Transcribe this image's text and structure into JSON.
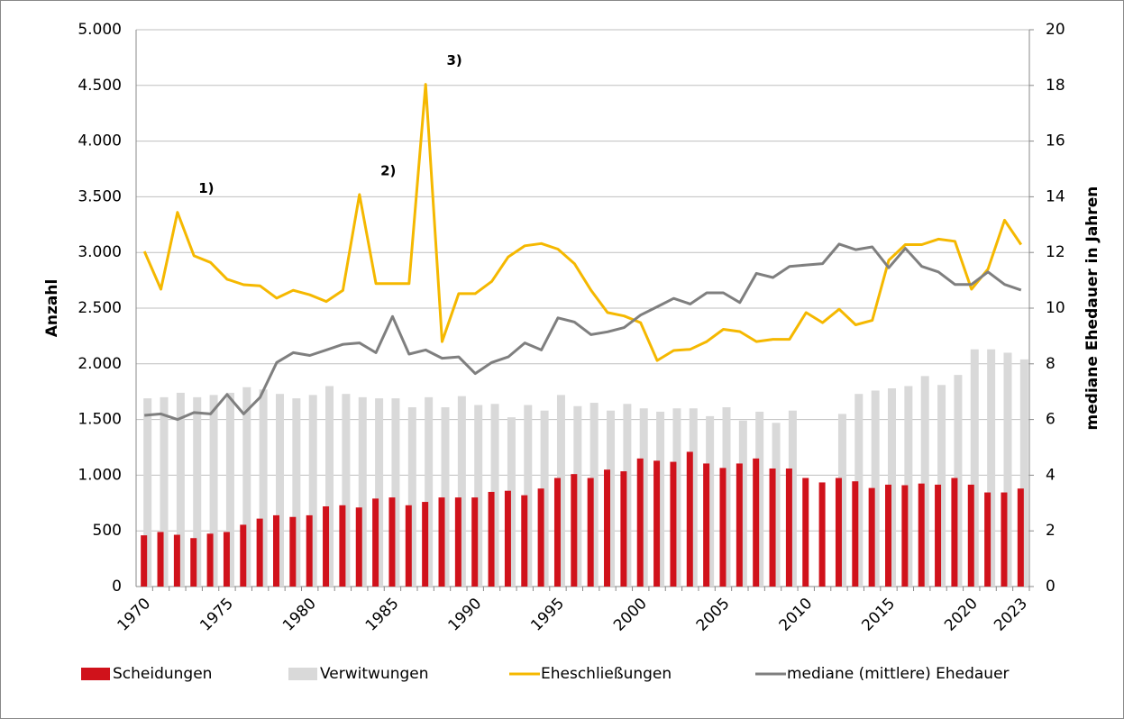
{
  "chart_data": {
    "type": "bar",
    "categories": [
      "1970",
      null,
      null,
      null,
      null,
      "1975",
      null,
      null,
      null,
      null,
      "1980",
      null,
      null,
      null,
      null,
      "1985",
      null,
      null,
      null,
      null,
      "1990",
      null,
      null,
      null,
      null,
      "1995",
      null,
      null,
      null,
      null,
      "2000",
      null,
      null,
      null,
      null,
      "2005",
      null,
      null,
      null,
      null,
      "2010",
      null,
      null,
      null,
      null,
      "2015",
      null,
      null,
      null,
      null,
      "2020",
      null,
      null,
      "2023"
    ],
    "series": [
      {
        "name": "Scheidungen",
        "type": "bar",
        "color": "#d0121b",
        "values": [
          460,
          490,
          465,
          435,
          475,
          490,
          555,
          610,
          640,
          625,
          640,
          720,
          730,
          710,
          790,
          800,
          730,
          760,
          800,
          800,
          800,
          850,
          860,
          820,
          880,
          975,
          1010,
          975,
          1050,
          1035,
          1150,
          1130,
          1120,
          1210,
          1105,
          1065,
          1105,
          1150,
          1060,
          1060,
          975,
          935,
          975,
          945,
          885,
          915,
          910,
          925,
          915,
          975,
          915,
          845,
          845,
          880
        ]
      },
      {
        "name": "Verwitwungen",
        "type": "bar",
        "color": "#d9d9d9",
        "values": [
          1690,
          1700,
          1740,
          1700,
          1720,
          1740,
          1790,
          1770,
          1730,
          1690,
          1720,
          1800,
          1730,
          1700,
          1690,
          1690,
          1610,
          1700,
          1610,
          1710,
          1630,
          1640,
          1520,
          1630,
          1580,
          1720,
          1620,
          1650,
          1580,
          1640,
          1600,
          1570,
          1600,
          1600,
          1530,
          1610,
          1490,
          1570,
          1470,
          1580,
          null,
          null,
          1550,
          1730,
          1760,
          1780,
          1800,
          1890,
          1810,
          1900,
          2130,
          2130,
          2100,
          2040
        ]
      },
      {
        "name": "Eheschließungen",
        "type": "line",
        "color": "#f5b800",
        "values": [
          3010,
          2670,
          3360,
          2970,
          2910,
          2760,
          2710,
          2700,
          2590,
          2660,
          2620,
          2560,
          2660,
          3520,
          2720,
          2720,
          2720,
          4510,
          2200,
          2630,
          2630,
          2740,
          2960,
          3060,
          3080,
          3030,
          2900,
          2660,
          2460,
          2430,
          2370,
          2030,
          2120,
          2130,
          2200,
          2310,
          2290,
          2200,
          2220,
          2220,
          2460,
          2370,
          2490,
          2350,
          2390,
          2930,
          3070,
          3070,
          3120,
          3100,
          2670,
          2850,
          3290,
          3070
        ]
      },
      {
        "name": "mediane (mittlere) Ehedauer",
        "type": "line",
        "axis": "y2",
        "color": "#7f7f7f",
        "values": [
          6.15,
          6.2,
          6.0,
          6.25,
          6.2,
          6.9,
          6.2,
          6.8,
          8.05,
          8.4,
          8.3,
          8.5,
          8.7,
          8.75,
          8.4,
          9.7,
          8.35,
          8.5,
          8.2,
          8.25,
          7.65,
          8.05,
          8.25,
          8.75,
          8.5,
          9.65,
          9.5,
          9.05,
          9.15,
          9.3,
          9.75,
          10.05,
          10.35,
          10.15,
          10.55,
          10.55,
          10.2,
          11.25,
          11.1,
          11.5,
          11.55,
          11.6,
          12.3,
          12.1,
          12.2,
          11.45,
          12.15,
          11.5,
          11.3,
          10.85,
          10.85,
          11.3,
          10.85,
          10.65
        ]
      }
    ],
    "ylabel": "Anzahl",
    "y2label": "mediane Ehedauer in Jahren",
    "ylim": [
      0,
      5000
    ],
    "yticks": [
      0,
      500,
      {
        "value": 1000,
        "label": "1.000"
      },
      {
        "value": 1500,
        "label": "1.500"
      },
      {
        "value": 2000,
        "label": "2.000"
      },
      {
        "value": 2500,
        "label": "2.500"
      },
      {
        "value": 3000,
        "label": "3.000"
      },
      {
        "value": 3500,
        "label": "3.500"
      },
      {
        "value": 4000,
        "label": "4.000"
      },
      {
        "value": 4500,
        "label": "4.500"
      },
      {
        "value": 5000,
        "label": "5.000"
      }
    ],
    "y2lim": [
      0,
      20
    ],
    "y2ticks": [
      0,
      2,
      4,
      6,
      8,
      10,
      12,
      14,
      16,
      18,
      20
    ],
    "grid": true,
    "legend": "bottom",
    "annotations": [
      "1)",
      "2)",
      "3)"
    ]
  }
}
